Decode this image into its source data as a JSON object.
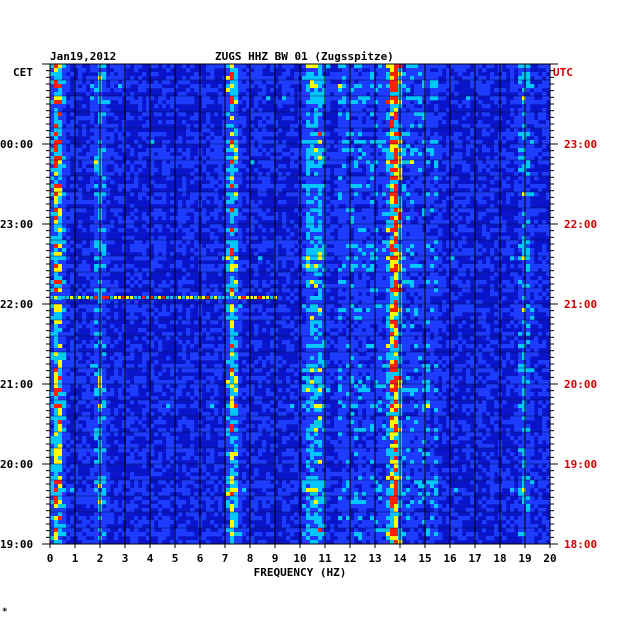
{
  "chart_data": {
    "type": "heatmap",
    "title": "ZUGS HHZ BW 01 (Zugsspitze)",
    "date": "Jan19,2012",
    "xlabel": "FREQUENCY (HZ)",
    "left_axis_label": "CET",
    "right_axis_label": "UTC",
    "xlim": [
      0,
      20
    ],
    "x_ticks": [
      "0",
      "1",
      "2",
      "3",
      "4",
      "5",
      "6",
      "7",
      "8",
      "9",
      "10",
      "11",
      "12",
      "13",
      "14",
      "15",
      "16",
      "17",
      "18",
      "19",
      "20"
    ],
    "left_ticks": [
      "00:00",
      "23:00",
      "22:00",
      "21:00",
      "20:00",
      "19:00"
    ],
    "right_ticks": [
      "23:00",
      "22:00",
      "21:00",
      "20:00",
      "19:00",
      "18:00"
    ],
    "colors": {
      "background": "#0a14c8",
      "low": "#1e3cff",
      "mid": "#00c8ff",
      "high": "#ffff00",
      "peak": "#ff2000",
      "right_axis_text": "#d00000"
    },
    "spectral_bands": [
      {
        "freq_hz": 0.3,
        "intensity": 0.9
      },
      {
        "freq_hz": 2.0,
        "intensity": 0.45
      },
      {
        "freq_hz": 7.3,
        "intensity": 0.7
      },
      {
        "freq_hz": 10.4,
        "intensity": 0.5
      },
      {
        "freq_hz": 10.8,
        "intensity": 0.45
      },
      {
        "freq_hz": 13.8,
        "intensity": 1.0
      },
      {
        "freq_hz": 19.0,
        "intensity": 0.4
      }
    ],
    "notable_event": {
      "time_cet": "22:00",
      "freq_range_hz": [
        0,
        9
      ],
      "description": "broadband burst"
    }
  },
  "footnote_mark": "*"
}
